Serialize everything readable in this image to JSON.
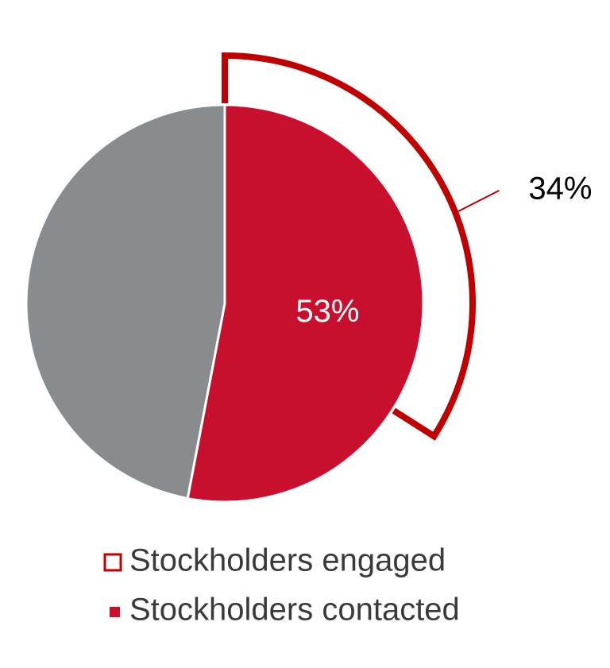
{
  "chart_data": {
    "type": "pie",
    "categories": [
      "Stockholders contacted",
      null
    ],
    "values": [
      53,
      47
    ],
    "value_labels": [
      "53%",
      null
    ],
    "colors": [
      "#c8102e",
      "#898c8e"
    ],
    "outer_arc": {
      "name": "Stockholders engaged",
      "value": 34,
      "value_label": "34%",
      "color": "#c00000"
    },
    "legend": "bottom"
  }
}
